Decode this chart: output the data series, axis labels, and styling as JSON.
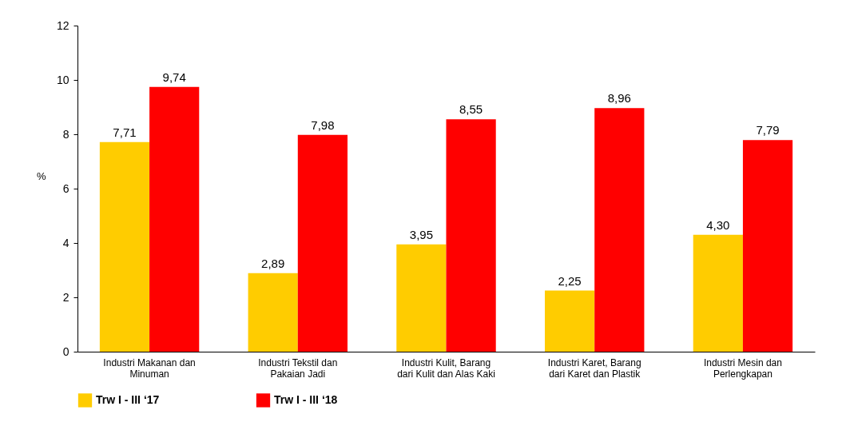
{
  "chart_data": {
    "type": "bar",
    "ylabel": "%",
    "categories": [
      "Industri Makanan dan\nMinuman",
      "Industri Tekstil dan\nPakaian Jadi",
      "Industri Kulit, Barang\ndari Kulit dan Alas Kaki",
      "Industri Karet, Barang\ndari Karet dan Plastik",
      "Industri Mesin dan\nPerlengkapan"
    ],
    "series": [
      {
        "name": "Trw I - III ‘17",
        "color": "#ffcc00",
        "values": [
          7.71,
          2.89,
          3.95,
          2.25,
          4.3
        ],
        "value_labels": [
          "7,71",
          "2,89",
          "3,95",
          "2,25",
          "4,30"
        ]
      },
      {
        "name": "Trw I - III ‘18",
        "color": "#ff0000",
        "values": [
          9.74,
          7.98,
          8.55,
          8.96,
          7.79
        ],
        "value_labels": [
          "9,74",
          "7,98",
          "8,55",
          "8,96",
          "7,79"
        ]
      }
    ],
    "ylim": [
      0,
      12
    ],
    "yticks": [
      0,
      2,
      4,
      6,
      8,
      10,
      12
    ],
    "grid": false,
    "legend": "bottom"
  }
}
